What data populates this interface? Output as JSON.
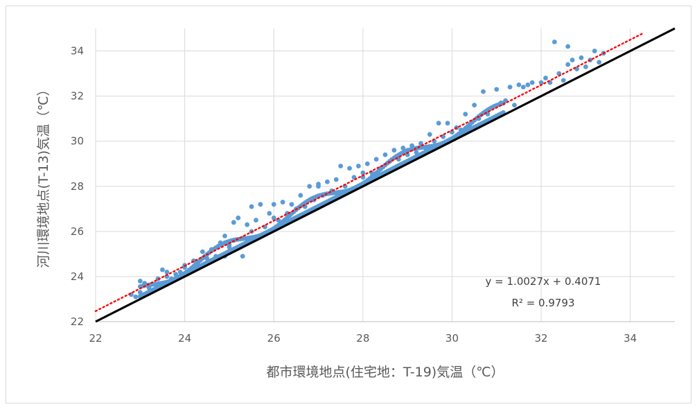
{
  "chart_data": {
    "type": "scatter",
    "xlabel": "都市環境地点(住宅地：T-19)気温（℃）",
    "ylabel": "河川環境地点(T-13)気温（℃）",
    "xlim": [
      22,
      35
    ],
    "ylim": [
      22,
      35
    ],
    "x_ticks": [
      "22",
      "24",
      "26",
      "28",
      "30",
      "32",
      "34"
    ],
    "y_ticks": [
      "22",
      "24",
      "26",
      "28",
      "30",
      "32",
      "34"
    ],
    "grid": true,
    "series": [
      {
        "name": "",
        "marker_color": "#5b9bd5",
        "points": [
          [
            22.8,
            23.2
          ],
          [
            22.9,
            23.1
          ],
          [
            23.0,
            23.3
          ],
          [
            23.0,
            23.8
          ],
          [
            23.1,
            23.7
          ],
          [
            23.2,
            23.5
          ],
          [
            23.3,
            23.4
          ],
          [
            23.4,
            23.9
          ],
          [
            23.5,
            24.3
          ],
          [
            23.5,
            23.6
          ],
          [
            23.6,
            24.2
          ],
          [
            23.7,
            23.9
          ],
          [
            23.8,
            24.1
          ],
          [
            23.9,
            24.2
          ],
          [
            24.0,
            24.4
          ],
          [
            24.1,
            24.2
          ],
          [
            24.2,
            24.7
          ],
          [
            24.3,
            24.5
          ],
          [
            24.4,
            25.1
          ],
          [
            24.5,
            24.8
          ],
          [
            24.6,
            25.2
          ],
          [
            24.7,
            24.9
          ],
          [
            24.8,
            25.5
          ],
          [
            24.9,
            25.8
          ],
          [
            24.9,
            24.9
          ],
          [
            25.0,
            25.3
          ],
          [
            25.1,
            25.6
          ],
          [
            25.1,
            26.4
          ],
          [
            25.2,
            26.6
          ],
          [
            25.3,
            24.9
          ],
          [
            25.3,
            25.7
          ],
          [
            25.4,
            26.3
          ],
          [
            25.5,
            27.1
          ],
          [
            25.5,
            26.0
          ],
          [
            25.6,
            26.5
          ],
          [
            25.7,
            27.2
          ],
          [
            25.8,
            26.2
          ],
          [
            25.9,
            26.8
          ],
          [
            26.0,
            27.2
          ],
          [
            26.1,
            26.5
          ],
          [
            26.2,
            27.3
          ],
          [
            26.3,
            26.8
          ],
          [
            26.4,
            27.2
          ],
          [
            26.5,
            27.0
          ],
          [
            26.6,
            27.6
          ],
          [
            26.7,
            27.1
          ],
          [
            26.8,
            28.0
          ],
          [
            26.9,
            27.4
          ],
          [
            27.0,
            28.1
          ],
          [
            27.1,
            27.6
          ],
          [
            27.2,
            28.2
          ],
          [
            27.3,
            27.8
          ],
          [
            27.4,
            28.3
          ],
          [
            27.5,
            28.9
          ],
          [
            27.6,
            28.0
          ],
          [
            27.7,
            28.8
          ],
          [
            27.8,
            28.4
          ],
          [
            27.9,
            28.9
          ],
          [
            28.0,
            28.6
          ],
          [
            28.1,
            29.0
          ],
          [
            28.2,
            28.6
          ],
          [
            28.3,
            29.2
          ],
          [
            28.4,
            28.8
          ],
          [
            28.5,
            29.4
          ],
          [
            28.6,
            29.1
          ],
          [
            28.7,
            29.6
          ],
          [
            28.8,
            29.2
          ],
          [
            28.9,
            29.7
          ],
          [
            29.0,
            29.4
          ],
          [
            29.1,
            29.8
          ],
          [
            29.2,
            29.5
          ],
          [
            29.3,
            29.9
          ],
          [
            29.4,
            29.7
          ],
          [
            29.5,
            30.3
          ],
          [
            29.6,
            30.0
          ],
          [
            29.7,
            30.8
          ],
          [
            29.8,
            30.2
          ],
          [
            29.9,
            30.8
          ],
          [
            30.0,
            30.4
          ],
          [
            30.1,
            30.6
          ],
          [
            30.2,
            30.5
          ],
          [
            30.3,
            31.2
          ],
          [
            30.4,
            30.7
          ],
          [
            30.5,
            31.6
          ],
          [
            30.6,
            31.0
          ],
          [
            30.7,
            32.2
          ],
          [
            30.8,
            31.2
          ],
          [
            30.9,
            31.5
          ],
          [
            31.0,
            32.3
          ],
          [
            31.1,
            31.7
          ],
          [
            31.2,
            31.8
          ],
          [
            31.3,
            32.4
          ],
          [
            31.4,
            31.6
          ],
          [
            31.5,
            32.5
          ],
          [
            31.6,
            32.4
          ],
          [
            31.7,
            32.5
          ],
          [
            31.8,
            32.6
          ],
          [
            32.0,
            32.6
          ],
          [
            32.1,
            32.8
          ],
          [
            32.2,
            32.6
          ],
          [
            32.3,
            34.4
          ],
          [
            32.4,
            33.0
          ],
          [
            32.5,
            32.7
          ],
          [
            32.6,
            33.4
          ],
          [
            32.7,
            33.6
          ],
          [
            32.8,
            33.2
          ],
          [
            32.9,
            33.7
          ],
          [
            33.0,
            33.3
          ],
          [
            33.1,
            33.6
          ],
          [
            33.2,
            34.0
          ],
          [
            33.3,
            33.5
          ],
          [
            33.4,
            33.9
          ],
          [
            32.6,
            34.2
          ],
          [
            27.0,
            28.0
          ],
          [
            26.0,
            26.6
          ],
          [
            25.0,
            25.4
          ],
          [
            24.0,
            24.5
          ],
          [
            23.6,
            24.0
          ],
          [
            29.0,
            29.6
          ],
          [
            28.0,
            28.4
          ]
        ],
        "trendline": {
          "equation": "y = 1.0027x + 0.4071",
          "r2": "R² = 0.9793",
          "slope": 1.0027,
          "intercept": 0.4071,
          "color": "#ff0000",
          "style": "dotted"
        }
      }
    ],
    "reference_line": {
      "slope": 1,
      "intercept": 0,
      "color": "#000000"
    }
  }
}
